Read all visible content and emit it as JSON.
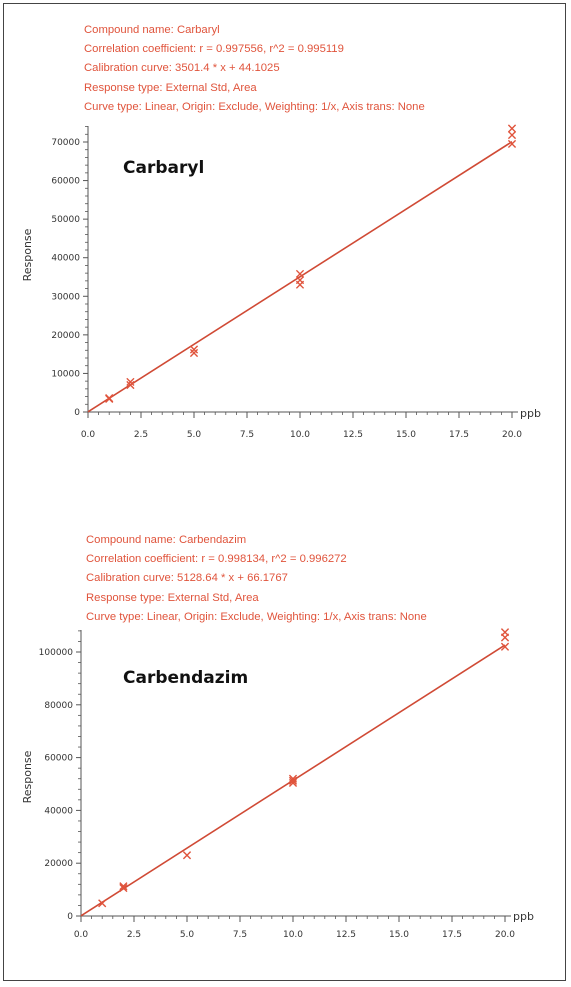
{
  "colors": {
    "accent": "#e0543c",
    "line": "#d04a35",
    "axis": "#555555",
    "text": "#333333"
  },
  "chart_data": [
    {
      "type": "scatter",
      "compound_label": "Carbaryl",
      "info": [
        "Compound name: Carbaryl",
        "Correlation coefficient: r = 0.997556, r^2 = 0.995119",
        "Calibration curve: 3501.4 * x + 44.1025",
        "Response type: External Std, Area",
        "Curve type: Linear, Origin: Exclude, Weighting: 1/x, Axis trans: None"
      ],
      "xlabel": "ppb",
      "ylabel": "Response",
      "xlim": [
        0,
        20
      ],
      "ylim": [
        0,
        70000
      ],
      "x_ticks": [
        "0.0",
        "2.5",
        "5.0",
        "7.5",
        "10.0",
        "12.5",
        "15.0",
        "17.5",
        "20.0"
      ],
      "y_ticks": [
        "0",
        "10000",
        "20000",
        "30000",
        "40000",
        "50000",
        "60000",
        "70000"
      ],
      "fit": {
        "slope": 3501.4,
        "intercept": 44.1025
      },
      "points": [
        {
          "x": 1,
          "y": 3600
        },
        {
          "x": 1,
          "y": 3400
        },
        {
          "x": 2,
          "y": 7800
        },
        {
          "x": 2,
          "y": 7000
        },
        {
          "x": 5,
          "y": 16200
        },
        {
          "x": 5,
          "y": 15300
        },
        {
          "x": 10,
          "y": 35800
        },
        {
          "x": 10,
          "y": 34200
        },
        {
          "x": 10,
          "y": 33000
        },
        {
          "x": 20,
          "y": 73500
        },
        {
          "x": 20,
          "y": 71800
        },
        {
          "x": 20,
          "y": 69500
        }
      ]
    },
    {
      "type": "scatter",
      "compound_label": "Carbendazim",
      "info": [
        "Compound name: Carbendazim",
        "Correlation coefficient: r = 0.998134, r^2 = 0.996272",
        "Calibration curve: 5128.64 * x + 66.1767",
        "Response type: External Std, Area",
        "Curve type: Linear, Origin: Exclude, Weighting: 1/x, Axis trans: None"
      ],
      "xlabel": "ppb",
      "ylabel": "Response",
      "xlim": [
        0,
        20
      ],
      "ylim": [
        0,
        100000
      ],
      "x_ticks": [
        "0.0",
        "2.5",
        "5.0",
        "7.5",
        "10.0",
        "12.5",
        "15.0",
        "17.5",
        "20.0"
      ],
      "y_ticks": [
        "0",
        "20000",
        "40000",
        "60000",
        "80000",
        "100000"
      ],
      "fit": {
        "slope": 5128.64,
        "intercept": 66.1767
      },
      "points": [
        {
          "x": 1,
          "y": 4800
        },
        {
          "x": 2,
          "y": 11300
        },
        {
          "x": 2,
          "y": 10600
        },
        {
          "x": 5,
          "y": 23000
        },
        {
          "x": 10,
          "y": 52000
        },
        {
          "x": 10,
          "y": 51200
        },
        {
          "x": 10,
          "y": 50400
        },
        {
          "x": 20,
          "y": 107500
        },
        {
          "x": 20,
          "y": 105500
        },
        {
          "x": 20,
          "y": 102000
        }
      ]
    }
  ]
}
